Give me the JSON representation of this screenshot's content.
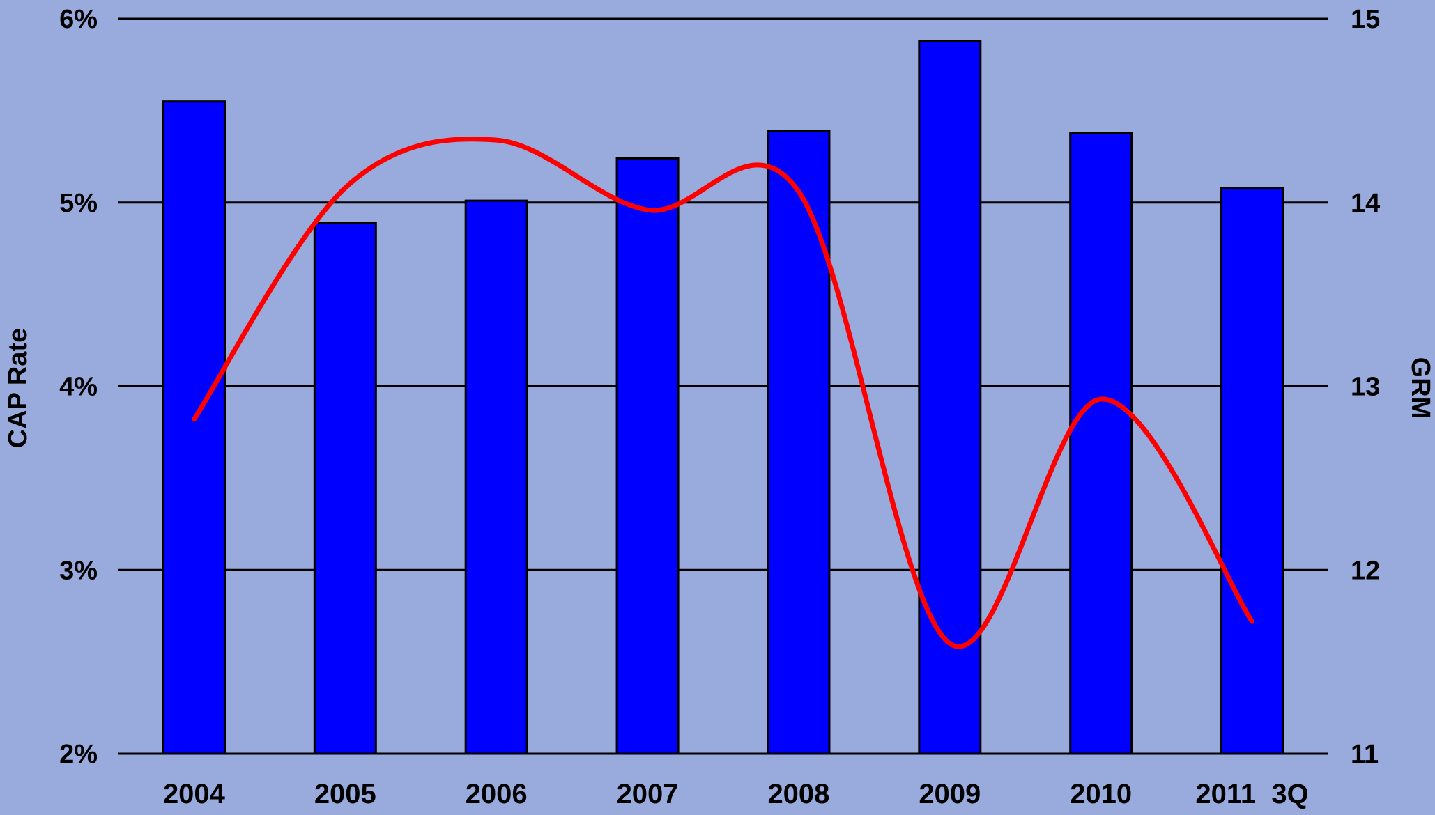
{
  "colors": {
    "background": "#99aadd",
    "bar": "#0000ff",
    "line": "#ff0000",
    "grid": "#000000"
  },
  "chart_data": {
    "type": "bar",
    "categories": [
      "2004",
      "2005",
      "2006",
      "2007",
      "2008",
      "2009",
      "2010",
      "2011  3Q"
    ],
    "series": [
      {
        "type": "bar",
        "axis": "left",
        "values": [
          5.55,
          4.89,
          5.01,
          5.24,
          5.39,
          5.88,
          5.38,
          5.08
        ]
      },
      {
        "type": "line",
        "axis": "right",
        "smooth": true,
        "values": [
          12.82,
          14.08,
          14.34,
          13.96,
          14.06,
          11.6,
          12.93,
          11.72
        ]
      }
    ],
    "ylabel": "CAP Rate",
    "y2label": "GRM",
    "ylim": [
      2,
      6
    ],
    "y2lim": [
      11,
      15
    ],
    "yticks": [
      "2%",
      "3%",
      "4%",
      "5%",
      "6%"
    ],
    "y2ticks": [
      "11",
      "12",
      "13",
      "14",
      "15"
    ],
    "grid": true,
    "legend": "none"
  }
}
